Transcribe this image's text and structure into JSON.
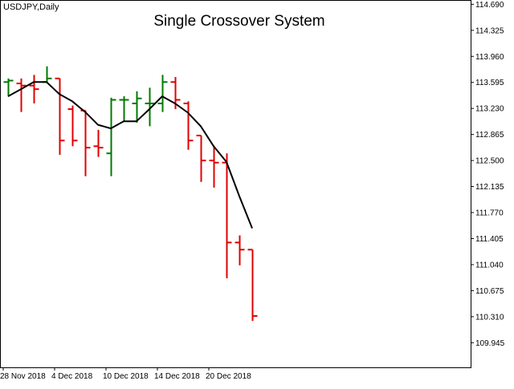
{
  "chart_data": {
    "type": "ohlc",
    "symbol_label": "USDJPY,Daily",
    "title": "Single Crossover System",
    "colors": {
      "up": "#007a00",
      "down": "#e00000",
      "ma": "#000000",
      "frame": "#000000"
    },
    "ylim": [
      109.6,
      114.75
    ],
    "y_ticks": [
      "114.690",
      "114.325",
      "113.960",
      "113.595",
      "113.230",
      "112.865",
      "112.500",
      "112.135",
      "111.770",
      "111.405",
      "111.040",
      "110.675",
      "110.310",
      "109.945"
    ],
    "x_tick_labels": [
      {
        "index": 0,
        "label": "28 Nov 2018"
      },
      {
        "index": 4,
        "label": "4 Dec 2018"
      },
      {
        "index": 8,
        "label": "10 Dec 2018"
      },
      {
        "index": 12,
        "label": "14 Dec 2018"
      },
      {
        "index": 16,
        "label": "20 Dec 2018"
      }
    ],
    "bars": [
      {
        "open": 113.6,
        "high": 113.65,
        "low": 113.4,
        "close": 113.62,
        "dir": "up"
      },
      {
        "open": 113.58,
        "high": 113.65,
        "low": 113.18,
        "close": 113.55,
        "dir": "down"
      },
      {
        "open": 113.55,
        "high": 113.7,
        "low": 113.3,
        "close": 113.5,
        "dir": "down"
      },
      {
        "open": 113.6,
        "high": 113.82,
        "low": 113.6,
        "close": 113.65,
        "dir": "up"
      },
      {
        "open": 113.65,
        "high": 113.65,
        "low": 112.58,
        "close": 112.78,
        "dir": "down"
      },
      {
        "open": 113.22,
        "high": 113.27,
        "low": 112.7,
        "close": 112.78,
        "dir": "down"
      },
      {
        "open": 113.2,
        "high": 113.2,
        "low": 112.28,
        "close": 112.68,
        "dir": "down"
      },
      {
        "open": 112.7,
        "high": 112.93,
        "low": 112.55,
        "close": 112.68,
        "dir": "down"
      },
      {
        "open": 112.6,
        "high": 113.38,
        "low": 112.28,
        "close": 113.35,
        "dir": "up"
      },
      {
        "open": 113.35,
        "high": 113.4,
        "low": 113.05,
        "close": 113.35,
        "dir": "up"
      },
      {
        "open": 113.3,
        "high": 113.47,
        "low": 113.03,
        "close": 113.37,
        "dir": "up"
      },
      {
        "open": 113.3,
        "high": 113.52,
        "low": 112.98,
        "close": 113.3,
        "dir": "up"
      },
      {
        "open": 113.3,
        "high": 113.7,
        "low": 113.18,
        "close": 113.6,
        "dir": "up"
      },
      {
        "open": 113.6,
        "high": 113.67,
        "low": 113.22,
        "close": 113.35,
        "dir": "down"
      },
      {
        "open": 113.3,
        "high": 113.33,
        "low": 112.65,
        "close": 112.78,
        "dir": "down"
      },
      {
        "open": 112.85,
        "high": 112.85,
        "low": 112.2,
        "close": 112.5,
        "dir": "down"
      },
      {
        "open": 112.5,
        "high": 112.7,
        "low": 112.12,
        "close": 112.47,
        "dir": "down"
      },
      {
        "open": 112.47,
        "high": 112.6,
        "low": 110.85,
        "close": 111.35,
        "dir": "down"
      },
      {
        "open": 111.35,
        "high": 111.45,
        "low": 111.03,
        "close": 111.25,
        "dir": "down"
      },
      {
        "open": 111.25,
        "high": 111.25,
        "low": 110.25,
        "close": 110.32,
        "dir": "down"
      }
    ],
    "ma": [
      113.4,
      113.5,
      113.6,
      113.6,
      113.43,
      113.33,
      113.18,
      113.0,
      112.95,
      113.05,
      113.05,
      113.22,
      113.4,
      113.3,
      113.17,
      112.98,
      112.7,
      112.48,
      112.0,
      111.55
    ]
  }
}
